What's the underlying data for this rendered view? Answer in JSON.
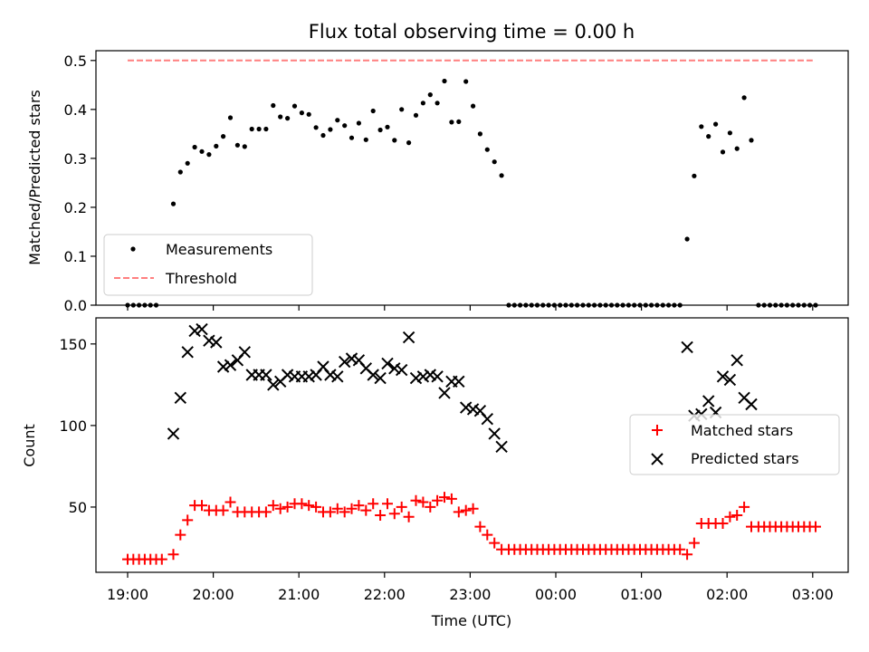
{
  "title": "Flux total observing time = 0.00 h",
  "chart_data": [
    {
      "type": "scatter",
      "ylabel": "Matched/Predicted stars",
      "xlabel": "",
      "ylim": [
        0,
        0.52
      ],
      "yticks": [
        "0.0",
        "0.1",
        "0.2",
        "0.3",
        "0.4",
        "0.5"
      ],
      "threshold": 0.5,
      "threshold_x_range": [
        "19:00",
        "03:00"
      ],
      "legend_position": "lower-left",
      "legend": [
        "Measurements",
        "Threshold"
      ],
      "colors": {
        "measurements": "#000000",
        "threshold": "#ff7f7f"
      },
      "measurements": [
        [
          "19:00",
          0
        ],
        [
          "19:04",
          0
        ],
        [
          "19:08",
          0
        ],
        [
          "19:12",
          0
        ],
        [
          "19:16",
          0
        ],
        [
          "19:20",
          0
        ],
        [
          "19:32",
          0.207
        ],
        [
          "19:37",
          0.272
        ],
        [
          "19:42",
          0.29
        ],
        [
          "19:47",
          0.323
        ],
        [
          "19:52",
          0.314
        ],
        [
          "19:57",
          0.308
        ],
        [
          "20:02",
          0.325
        ],
        [
          "20:07",
          0.345
        ],
        [
          "20:12",
          0.383
        ],
        [
          "20:17",
          0.327
        ],
        [
          "20:22",
          0.324
        ],
        [
          "20:27",
          0.36
        ],
        [
          "20:32",
          0.36
        ],
        [
          "20:37",
          0.36
        ],
        [
          "20:42",
          0.408
        ],
        [
          "20:47",
          0.385
        ],
        [
          "20:52",
          0.382
        ],
        [
          "20:57",
          0.407
        ],
        [
          "21:02",
          0.393
        ],
        [
          "21:07",
          0.39
        ],
        [
          "21:12",
          0.363
        ],
        [
          "21:17",
          0.347
        ],
        [
          "21:22",
          0.359
        ],
        [
          "21:27",
          0.378
        ],
        [
          "21:32",
          0.367
        ],
        [
          "21:37",
          0.342
        ],
        [
          "21:42",
          0.372
        ],
        [
          "21:47",
          0.338
        ],
        [
          "21:52",
          0.397
        ],
        [
          "21:57",
          0.358
        ],
        [
          "22:02",
          0.364
        ],
        [
          "22:07",
          0.337
        ],
        [
          "22:12",
          0.4
        ],
        [
          "22:17",
          0.332
        ],
        [
          "22:22",
          0.388
        ],
        [
          "22:27",
          0.413
        ],
        [
          "22:32",
          0.43
        ],
        [
          "22:37",
          0.413
        ],
        [
          "22:42",
          0.458
        ],
        [
          "22:47",
          0.374
        ],
        [
          "22:52",
          0.375
        ],
        [
          "22:57",
          0.457
        ],
        [
          "23:02",
          0.407
        ],
        [
          "23:07",
          0.35
        ],
        [
          "23:12",
          0.318
        ],
        [
          "23:17",
          0.293
        ],
        [
          "23:22",
          0.265
        ],
        [
          "23:27",
          0
        ],
        [
          "23:31",
          0
        ],
        [
          "23:35",
          0
        ],
        [
          "23:39",
          0
        ],
        [
          "23:43",
          0
        ],
        [
          "23:47",
          0
        ],
        [
          "23:51",
          0
        ],
        [
          "23:55",
          0
        ],
        [
          "23:59",
          0
        ],
        [
          "00:03",
          0
        ],
        [
          "00:07",
          0
        ],
        [
          "00:11",
          0
        ],
        [
          "00:15",
          0
        ],
        [
          "00:19",
          0
        ],
        [
          "00:23",
          0
        ],
        [
          "00:27",
          0
        ],
        [
          "00:31",
          0
        ],
        [
          "00:35",
          0
        ],
        [
          "00:39",
          0
        ],
        [
          "00:43",
          0
        ],
        [
          "00:47",
          0
        ],
        [
          "00:51",
          0
        ],
        [
          "00:55",
          0
        ],
        [
          "00:59",
          0
        ],
        [
          "01:03",
          0
        ],
        [
          "01:07",
          0
        ],
        [
          "01:11",
          0
        ],
        [
          "01:15",
          0
        ],
        [
          "01:19",
          0
        ],
        [
          "01:23",
          0
        ],
        [
          "01:27",
          0
        ],
        [
          "01:32",
          0.135
        ],
        [
          "01:37",
          0.264
        ],
        [
          "01:42",
          0.365
        ],
        [
          "01:47",
          0.345
        ],
        [
          "01:52",
          0.37
        ],
        [
          "01:57",
          0.313
        ],
        [
          "02:02",
          0.352
        ],
        [
          "02:07",
          0.32
        ],
        [
          "02:12",
          0.424
        ],
        [
          "02:17",
          0.337
        ],
        [
          "02:22",
          0
        ],
        [
          "02:26",
          0
        ],
        [
          "02:30",
          0
        ],
        [
          "02:34",
          0
        ],
        [
          "02:38",
          0
        ],
        [
          "02:42",
          0
        ],
        [
          "02:46",
          0
        ],
        [
          "02:50",
          0
        ],
        [
          "02:54",
          0
        ],
        [
          "02:58",
          0
        ],
        [
          "03:02",
          0
        ]
      ]
    },
    {
      "type": "scatter",
      "ylabel": "Count",
      "xlabel": "Time (UTC)",
      "ylim": [
        10,
        166
      ],
      "yticks": [
        "50",
        "100",
        "150"
      ],
      "xticks": [
        "19:00",
        "20:00",
        "21:00",
        "22:00",
        "23:00",
        "00:00",
        "01:00",
        "02:00",
        "03:00"
      ],
      "legend_position": "right",
      "legend": [
        "Matched stars",
        "Predicted stars"
      ],
      "colors": {
        "matched": "#ff0000",
        "predicted": "#000000"
      },
      "matched": [
        [
          "19:00",
          18
        ],
        [
          "19:04",
          18
        ],
        [
          "19:08",
          18
        ],
        [
          "19:12",
          18
        ],
        [
          "19:16",
          18
        ],
        [
          "19:20",
          18
        ],
        [
          "19:24",
          18
        ],
        [
          "19:32",
          21
        ],
        [
          "19:37",
          33
        ],
        [
          "19:42",
          42
        ],
        [
          "19:47",
          51
        ],
        [
          "19:52",
          51
        ],
        [
          "19:57",
          48
        ],
        [
          "20:02",
          48
        ],
        [
          "20:07",
          48
        ],
        [
          "20:12",
          53
        ],
        [
          "20:17",
          47
        ],
        [
          "20:22",
          47
        ],
        [
          "20:27",
          47
        ],
        [
          "20:32",
          47
        ],
        [
          "20:37",
          47
        ],
        [
          "20:42",
          51
        ],
        [
          "20:47",
          49
        ],
        [
          "20:52",
          50
        ],
        [
          "20:57",
          52
        ],
        [
          "21:02",
          52
        ],
        [
          "21:07",
          51
        ],
        [
          "21:12",
          50
        ],
        [
          "21:17",
          47
        ],
        [
          "21:22",
          47
        ],
        [
          "21:27",
          49
        ],
        [
          "21:32",
          47
        ],
        [
          "21:37",
          49
        ],
        [
          "21:42",
          51
        ],
        [
          "21:47",
          48
        ],
        [
          "21:52",
          52
        ],
        [
          "21:57",
          45
        ],
        [
          "22:02",
          52
        ],
        [
          "22:07",
          46
        ],
        [
          "22:12",
          50
        ],
        [
          "22:17",
          44
        ],
        [
          "22:22",
          54
        ],
        [
          "22:27",
          53
        ],
        [
          "22:32",
          50
        ],
        [
          "22:37",
          54
        ],
        [
          "22:42",
          56
        ],
        [
          "22:47",
          55
        ],
        [
          "22:52",
          47
        ],
        [
          "22:57",
          48
        ],
        [
          "23:02",
          49
        ],
        [
          "23:07",
          38
        ],
        [
          "23:12",
          33
        ],
        [
          "23:17",
          28
        ],
        [
          "23:22",
          24
        ],
        [
          "23:27",
          24
        ],
        [
          "23:31",
          24
        ],
        [
          "23:35",
          24
        ],
        [
          "23:39",
          24
        ],
        [
          "23:43",
          24
        ],
        [
          "23:47",
          24
        ],
        [
          "23:51",
          24
        ],
        [
          "23:55",
          24
        ],
        [
          "23:59",
          24
        ],
        [
          "00:03",
          24
        ],
        [
          "00:07",
          24
        ],
        [
          "00:11",
          24
        ],
        [
          "00:15",
          24
        ],
        [
          "00:19",
          24
        ],
        [
          "00:23",
          24
        ],
        [
          "00:27",
          24
        ],
        [
          "00:31",
          24
        ],
        [
          "00:35",
          24
        ],
        [
          "00:39",
          24
        ],
        [
          "00:43",
          24
        ],
        [
          "00:47",
          24
        ],
        [
          "00:51",
          24
        ],
        [
          "00:55",
          24
        ],
        [
          "00:59",
          24
        ],
        [
          "01:03",
          24
        ],
        [
          "01:07",
          24
        ],
        [
          "01:11",
          24
        ],
        [
          "01:15",
          24
        ],
        [
          "01:19",
          24
        ],
        [
          "01:23",
          24
        ],
        [
          "01:27",
          24
        ],
        [
          "01:32",
          21
        ],
        [
          "01:37",
          28
        ],
        [
          "01:42",
          40
        ],
        [
          "01:47",
          40
        ],
        [
          "01:52",
          40
        ],
        [
          "01:57",
          40
        ],
        [
          "02:02",
          44
        ],
        [
          "02:07",
          45
        ],
        [
          "02:12",
          50
        ],
        [
          "02:17",
          38
        ],
        [
          "02:22",
          38
        ],
        [
          "02:26",
          38
        ],
        [
          "02:30",
          38
        ],
        [
          "02:34",
          38
        ],
        [
          "02:38",
          38
        ],
        [
          "02:42",
          38
        ],
        [
          "02:46",
          38
        ],
        [
          "02:50",
          38
        ],
        [
          "02:54",
          38
        ],
        [
          "02:58",
          38
        ],
        [
          "03:02",
          38
        ]
      ],
      "predicted": [
        [
          "19:32",
          95
        ],
        [
          "19:37",
          117
        ],
        [
          "19:42",
          145
        ],
        [
          "19:47",
          158
        ],
        [
          "19:52",
          159
        ],
        [
          "19:57",
          152
        ],
        [
          "20:02",
          151
        ],
        [
          "20:07",
          136
        ],
        [
          "20:12",
          137
        ],
        [
          "20:17",
          140
        ],
        [
          "20:22",
          145
        ],
        [
          "20:27",
          131
        ],
        [
          "20:32",
          131
        ],
        [
          "20:37",
          131
        ],
        [
          "20:42",
          125
        ],
        [
          "20:47",
          127
        ],
        [
          "20:52",
          131
        ],
        [
          "20:57",
          130
        ],
        [
          "21:02",
          130
        ],
        [
          "21:07",
          130
        ],
        [
          "21:12",
          131
        ],
        [
          "21:17",
          136
        ],
        [
          "21:22",
          131
        ],
        [
          "21:27",
          130
        ],
        [
          "21:32",
          139
        ],
        [
          "21:37",
          141
        ],
        [
          "21:42",
          140
        ],
        [
          "21:47",
          135
        ],
        [
          "21:52",
          131
        ],
        [
          "21:57",
          129
        ],
        [
          "22:02",
          138
        ],
        [
          "22:07",
          135
        ],
        [
          "22:12",
          134
        ],
        [
          "22:17",
          154
        ],
        [
          "22:22",
          129
        ],
        [
          "22:27",
          130
        ],
        [
          "22:32",
          131
        ],
        [
          "22:37",
          130
        ],
        [
          "22:42",
          120
        ],
        [
          "22:47",
          127
        ],
        [
          "22:52",
          127
        ],
        [
          "22:57",
          111
        ],
        [
          "23:02",
          110
        ],
        [
          "23:07",
          109
        ],
        [
          "23:12",
          104
        ],
        [
          "23:17",
          95
        ],
        [
          "23:22",
          87
        ],
        [
          "01:32",
          148
        ],
        [
          "01:37",
          106
        ],
        [
          "01:42",
          107
        ],
        [
          "01:47",
          115
        ],
        [
          "01:52",
          108
        ],
        [
          "01:57",
          130
        ],
        [
          "02:02",
          128
        ],
        [
          "02:07",
          140
        ],
        [
          "02:12",
          117
        ],
        [
          "02:17",
          113
        ]
      ]
    }
  ]
}
